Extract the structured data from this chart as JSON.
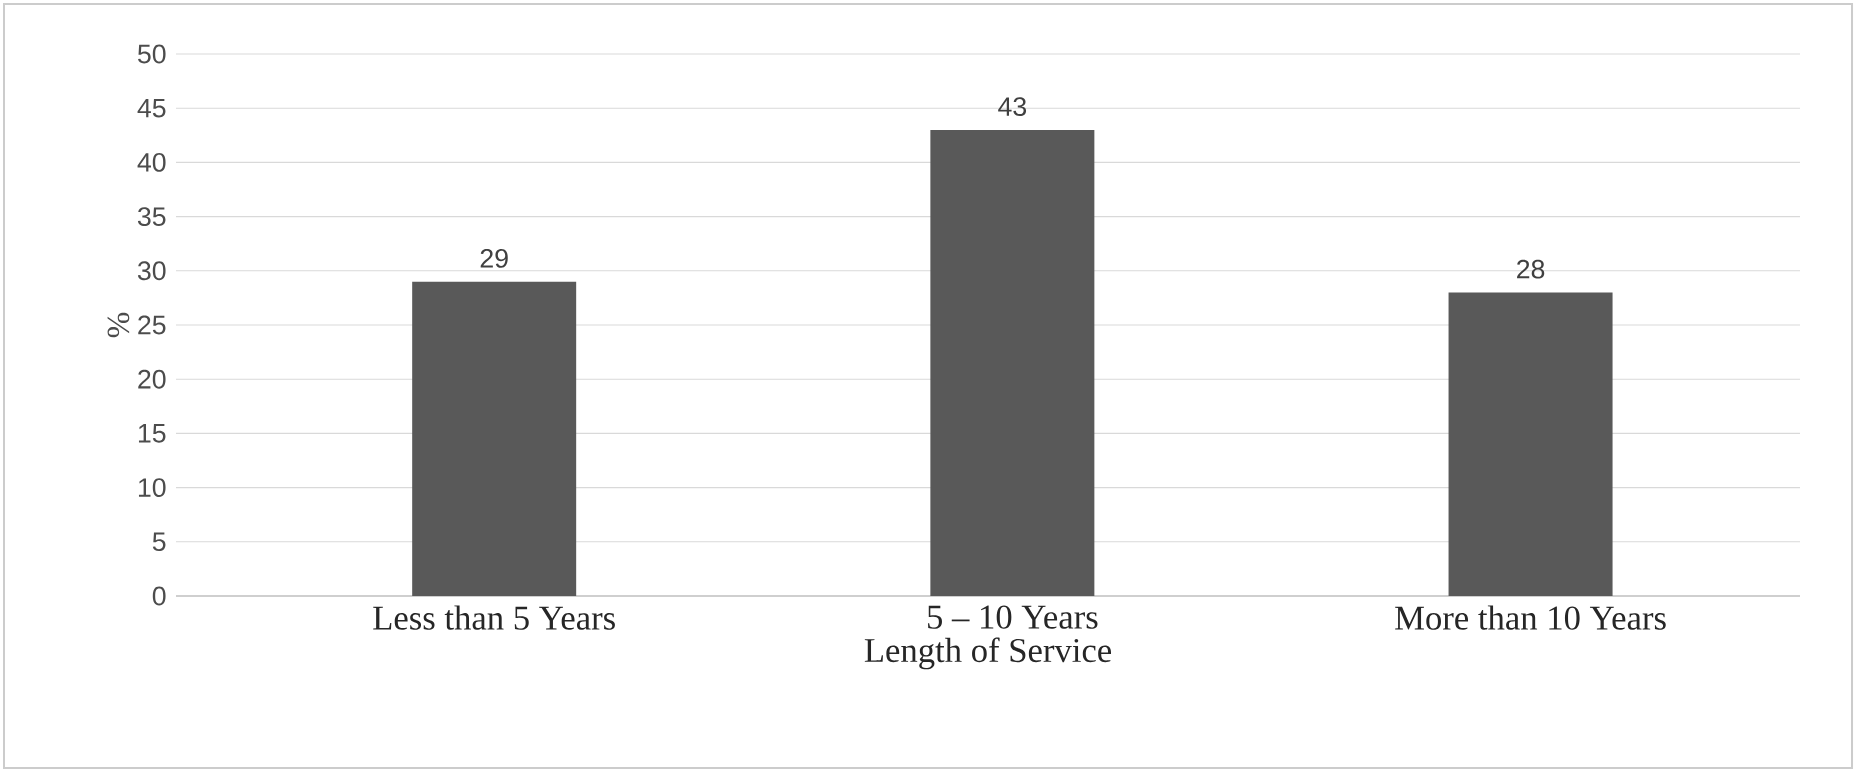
{
  "chart_data": {
    "type": "bar",
    "xlabel": "Length of Service",
    "ylabel": "%",
    "categories": [
      "Less than 5 Years",
      "5 – 10 Years",
      "More than 10 Years"
    ],
    "values": [
      29,
      43,
      28
    ],
    "color": "#595959",
    "ylim": [
      0,
      50
    ],
    "yticks": [
      0,
      5,
      10,
      15,
      20,
      25,
      30,
      35,
      40,
      45,
      50
    ],
    "grid": "y",
    "data_labels": true
  }
}
